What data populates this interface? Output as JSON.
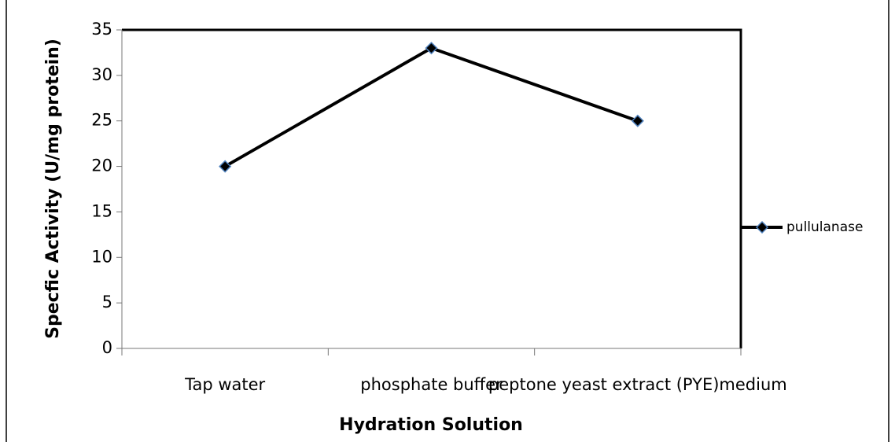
{
  "chart_data": {
    "type": "line",
    "x_label": "Hydration Solution",
    "y_label": "Specfic  Activity (U/mg protein)",
    "categories": [
      "Tap water",
      "phosphate buffer",
      "peptone yeast extract (PYE)medium"
    ],
    "series": [
      {
        "name": "pullulanase",
        "color": "#000000",
        "values": [
          20,
          33,
          25
        ]
      }
    ],
    "ylim": [
      0,
      35
    ],
    "yticks": [
      0,
      5,
      10,
      15,
      20,
      25,
      30,
      35
    ],
    "grid": false,
    "legend": "right"
  }
}
